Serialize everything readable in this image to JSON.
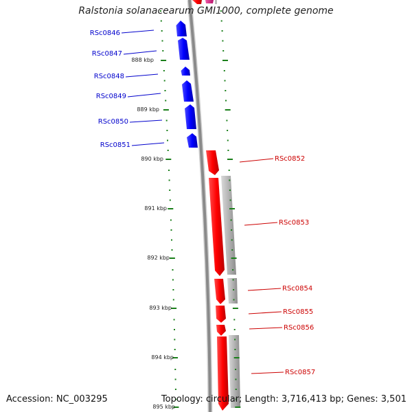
{
  "title": "Ralstonia solanacearum GMI1000, complete genome",
  "accession": "Accession: NC_003295",
  "topology": "Topology: circular; Length: 3,716,413 bp; Genes: 3,501",
  "colors": {
    "forward_gene": "#ff0000",
    "reverse_gene": "#0000ff",
    "other_feature": "#ec1e8c",
    "cds_shadow": "#b3b3b3",
    "backbone": "#8a8a8a",
    "ticks": "#1a7f1a",
    "forward_label": "#cc0000",
    "reverse_label": "#0000cc",
    "kbp_label": "#222222"
  },
  "kbp_ticks": [
    "888 kbp",
    "889 kbp",
    "890 kbp",
    "891 kbp",
    "892 kbp",
    "893 kbp",
    "894 kbp",
    "895 kbp"
  ],
  "reverse_genes": [
    "RSc0846",
    "RSc0847",
    "RSc0848",
    "RSc0849",
    "RSc0850",
    "RSc0851"
  ],
  "forward_genes": [
    "RSc0852",
    "RSc0853",
    "RSc0854",
    "RSc0855",
    "RSc0856",
    "RSc0857"
  ]
}
